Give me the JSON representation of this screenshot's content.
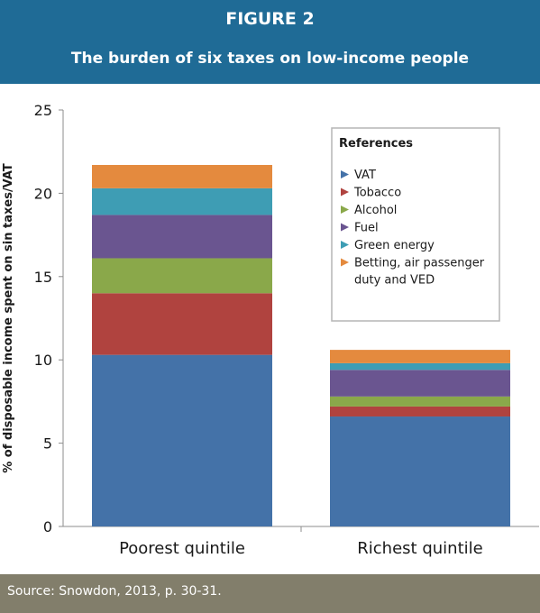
{
  "header": {
    "figure_label": "FIGURE 2",
    "title": "The burden of six taxes on low-income people"
  },
  "footer": {
    "source": "Source: Snowdon, 2013, p. 30-31."
  },
  "colors": {
    "header_bg": "#1f6b96",
    "footer_bg": "#827e6b",
    "VAT": "#4472a8",
    "Tobacco": "#b0433f",
    "Alcohol": "#8aa84a",
    "Fuel": "#6a5590",
    "Green energy": "#3e9db4",
    "Betting": "#e48a3e"
  },
  "chart_data": {
    "type": "bar",
    "stacked": true,
    "title": "",
    "xlabel": "",
    "ylabel": "% of disposable income spent on sin taxes/VAT",
    "ylim": [
      0,
      25
    ],
    "yticks": [
      0,
      5,
      10,
      15,
      20,
      25
    ],
    "grid": false,
    "legend_title": "References",
    "legend_position": "top-right",
    "categories": [
      "Poorest quintile",
      "Richest quintile"
    ],
    "series": [
      {
        "name": "VAT",
        "color": "#4472a8",
        "values": [
          10.3,
          6.6
        ]
      },
      {
        "name": "Tobacco",
        "color": "#b0433f",
        "values": [
          3.7,
          0.6
        ]
      },
      {
        "name": "Alcohol",
        "color": "#8aa84a",
        "values": [
          2.1,
          0.6
        ]
      },
      {
        "name": "Fuel",
        "color": "#6a5590",
        "values": [
          2.6,
          1.6
        ]
      },
      {
        "name": "Green energy",
        "color": "#3e9db4",
        "values": [
          1.6,
          0.4
        ]
      },
      {
        "name": "Betting, air passenger duty and VED",
        "color": "#e48a3e",
        "values": [
          1.4,
          0.8
        ]
      }
    ]
  }
}
